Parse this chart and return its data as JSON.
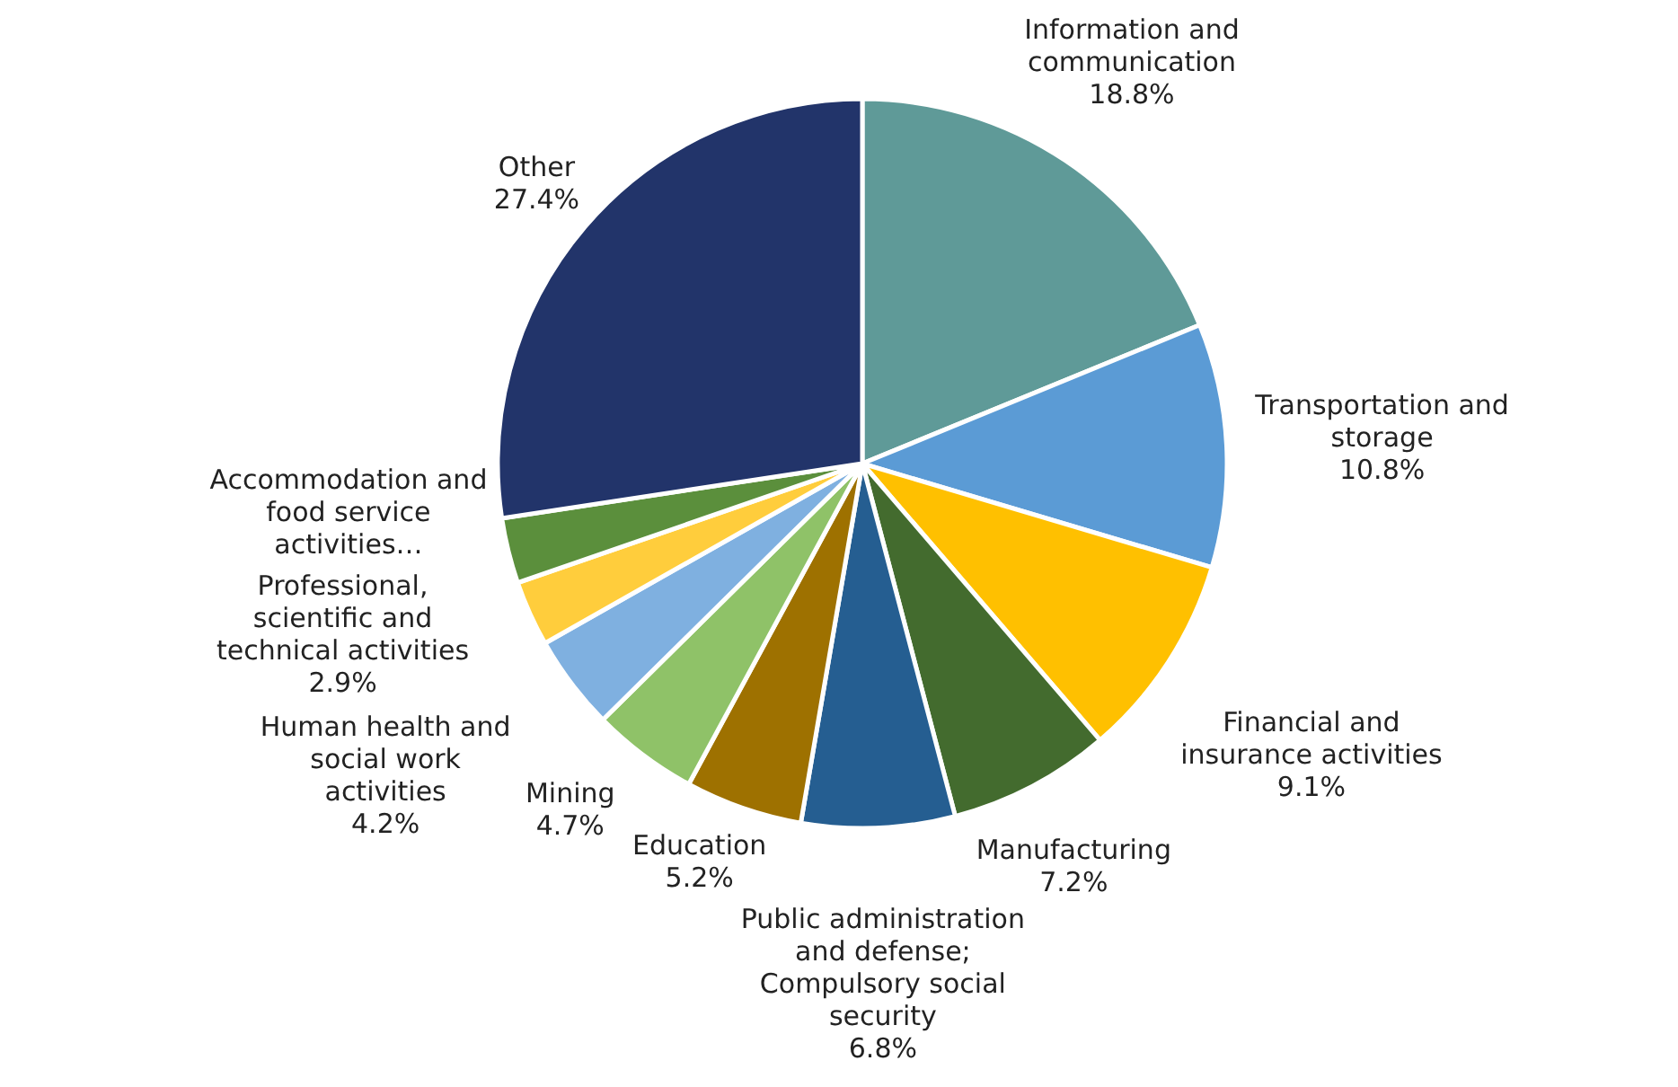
{
  "chart_data": {
    "type": "pie",
    "categories": [
      "Information and communication",
      "Transportation and storage",
      "Financial and insurance activities",
      "Manufacturing",
      "Public administration and defense; Compulsory social security",
      "Education",
      "Mining",
      "Human health and social work activities",
      "Professional, scientific and technical activities",
      "Accommodation and food service activities…",
      "Other"
    ],
    "values": [
      18.8,
      10.8,
      9.1,
      7.2,
      6.8,
      5.2,
      4.7,
      4.2,
      2.9,
      2.9,
      27.4
    ],
    "colors": [
      "#5f9a98",
      "#5b9bd5",
      "#ffc000",
      "#436b2e",
      "#255e91",
      "#9e7100",
      "#8fc268",
      "#7fb0e0",
      "#ffcd3c",
      "#5b8f3c",
      "#22346a"
    ],
    "value_labels": [
      "18.8%",
      "10.8%",
      "9.1%",
      "7.2%",
      "6.8%",
      "5.2%",
      "4.7%",
      "4.2%",
      "2.9%",
      null,
      "27.4%"
    ]
  }
}
